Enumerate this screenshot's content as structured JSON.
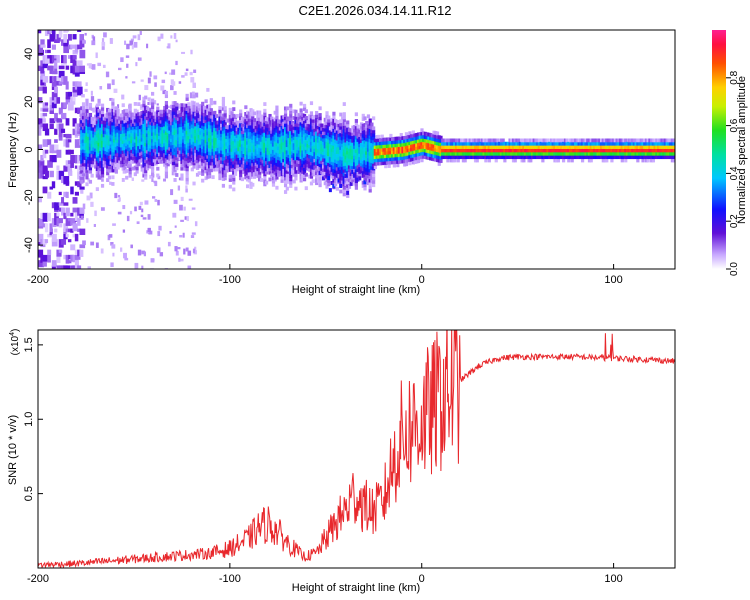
{
  "title": "C2E1.2026.034.14.11.R12",
  "chart_data": [
    {
      "type": "heatmap",
      "name": "spectrogram",
      "xlabel": "Height of straight line (km)",
      "ylabel": "Frequency (Hz)",
      "xlim": [
        -200,
        132
      ],
      "ylim": [
        -50,
        50
      ],
      "xticks": [
        -200,
        -100,
        0,
        100
      ],
      "yticks": [
        -40,
        -20,
        0,
        20,
        40
      ],
      "colorbar": {
        "label": "Normalized spectral amplitude",
        "range": [
          0,
          1
        ],
        "ticks": [
          0.0,
          0.2,
          0.4,
          0.6,
          0.8
        ]
      },
      "ridge": {
        "description": "main signal band center frequency vs height",
        "x": [
          -178,
          -160,
          -140,
          -120,
          -100,
          -80,
          -60,
          -40,
          -25,
          -10,
          0,
          10,
          40,
          80,
          132
        ],
        "y": [
          3,
          4,
          5,
          6,
          2,
          1,
          2,
          -2,
          -1,
          0,
          2,
          0,
          0,
          0,
          0
        ]
      },
      "noise_region_x": [
        -200,
        -178
      ]
    },
    {
      "type": "line",
      "name": "snr",
      "xlabel": "Height of straight line (km)",
      "ylabel": "SNR (10 * v/v)",
      "scale_label": "(x10",
      "scale_exponent": "4",
      "xlim": [
        -200,
        132
      ],
      "ylim": [
        0,
        1.6
      ],
      "xticks": [
        -200,
        -100,
        0,
        100
      ],
      "yticks": [
        0.5,
        1.0,
        1.5
      ],
      "ytick_labels": [
        "0.5",
        "1.0",
        "1.5"
      ],
      "series": [
        {
          "name": "SNR",
          "color": "#e8282c",
          "x": [
            -200,
            -180,
            -160,
            -140,
            -120,
            -110,
            -100,
            -90,
            -85,
            -80,
            -75,
            -70,
            -62,
            -60,
            -55,
            -50,
            -45,
            -40,
            -35,
            -30,
            -25,
            -20,
            -15,
            -10,
            -5,
            0,
            5,
            10,
            20,
            30,
            40,
            50,
            60,
            80,
            100,
            120,
            132
          ],
          "y": [
            0.02,
            0.03,
            0.05,
            0.07,
            0.09,
            0.1,
            0.13,
            0.2,
            0.27,
            0.3,
            0.24,
            0.17,
            0.08,
            0.08,
            0.1,
            0.2,
            0.3,
            0.38,
            0.5,
            0.42,
            0.38,
            0.45,
            0.7,
            0.9,
            0.95,
            1.0,
            1.05,
            1.15,
            1.26,
            1.36,
            1.41,
            1.42,
            1.42,
            1.42,
            1.41,
            1.4,
            1.39
          ]
        }
      ]
    }
  ]
}
